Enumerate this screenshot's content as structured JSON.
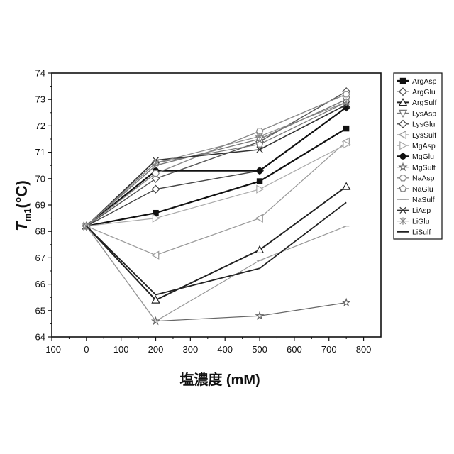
{
  "chart_data": {
    "type": "line",
    "xlabel": "塩濃度 (mM)",
    "ylabel": {
      "main": "T",
      "sub": "m1",
      "unit": "(°C)"
    },
    "xlim": [
      -100,
      850
    ],
    "ylim": [
      64,
      74
    ],
    "xticks": [
      -100,
      0,
      100,
      200,
      300,
      400,
      500,
      600,
      700,
      800
    ],
    "yticks": [
      64,
      65,
      66,
      67,
      68,
      69,
      70,
      71,
      72,
      73,
      74
    ],
    "legend_position": "right",
    "x": [
      0,
      200,
      500,
      750
    ],
    "series": [
      {
        "name": "ArgAsp",
        "marker": "filled-square",
        "color": "#111111",
        "width": 2.2,
        "values": [
          68.2,
          68.7,
          69.9,
          71.9
        ]
      },
      {
        "name": "ArgGlu",
        "marker": "diamond",
        "color": "#555555",
        "width": 1.4,
        "values": [
          68.2,
          70.0,
          71.4,
          73.3
        ]
      },
      {
        "name": "ArgSulf",
        "marker": "triangle-up",
        "color": "#222222",
        "width": 2.0,
        "values": [
          68.2,
          65.4,
          67.3,
          69.7
        ]
      },
      {
        "name": "LysAsp",
        "marker": "triangle-down",
        "color": "#777777",
        "width": 1.4,
        "values": [
          68.2,
          70.5,
          71.5,
          73.0
        ]
      },
      {
        "name": "LysGlu",
        "marker": "diamond",
        "color": "#444444",
        "width": 1.4,
        "values": [
          68.2,
          69.6,
          70.3,
          72.7
        ]
      },
      {
        "name": "LysSulf",
        "marker": "triangle-left",
        "color": "#999999",
        "width": 1.2,
        "values": [
          68.2,
          67.1,
          68.5,
          71.4
        ]
      },
      {
        "name": "MgAsp",
        "marker": "triangle-right",
        "color": "#aaaaaa",
        "width": 1.2,
        "values": [
          68.2,
          68.5,
          69.6,
          71.3
        ]
      },
      {
        "name": "MgGlu",
        "marker": "filled-circle",
        "color": "#111111",
        "width": 2.2,
        "values": [
          68.2,
          70.3,
          70.3,
          72.7
        ]
      },
      {
        "name": "MgSulf",
        "marker": "star",
        "color": "#666666",
        "width": 1.2,
        "values": [
          68.2,
          64.6,
          64.8,
          65.3
        ]
      },
      {
        "name": "NaAsp",
        "marker": "hexagon",
        "color": "#888888",
        "width": 1.4,
        "values": [
          68.2,
          70.2,
          71.8,
          73.2
        ]
      },
      {
        "name": "NaGlu",
        "marker": "pentagon",
        "color": "#777777",
        "width": 1.2,
        "values": [
          68.2,
          70.6,
          71.3,
          72.9
        ]
      },
      {
        "name": "NaSulf",
        "marker": "minus",
        "color": "#999999",
        "width": 1.2,
        "values": [
          68.2,
          64.6,
          66.9,
          68.2
        ]
      },
      {
        "name": "LiAsp",
        "marker": "x",
        "color": "#333333",
        "width": 1.6,
        "values": [
          68.2,
          70.7,
          71.1,
          72.8
        ]
      },
      {
        "name": "LiGlu",
        "marker": "asterisk",
        "color": "#888888",
        "width": 1.2,
        "values": [
          68.2,
          70.6,
          71.6,
          72.9
        ]
      },
      {
        "name": "LiSulf",
        "marker": "none",
        "color": "#222222",
        "width": 1.8,
        "values": [
          68.2,
          65.6,
          66.6,
          69.1
        ]
      }
    ]
  }
}
